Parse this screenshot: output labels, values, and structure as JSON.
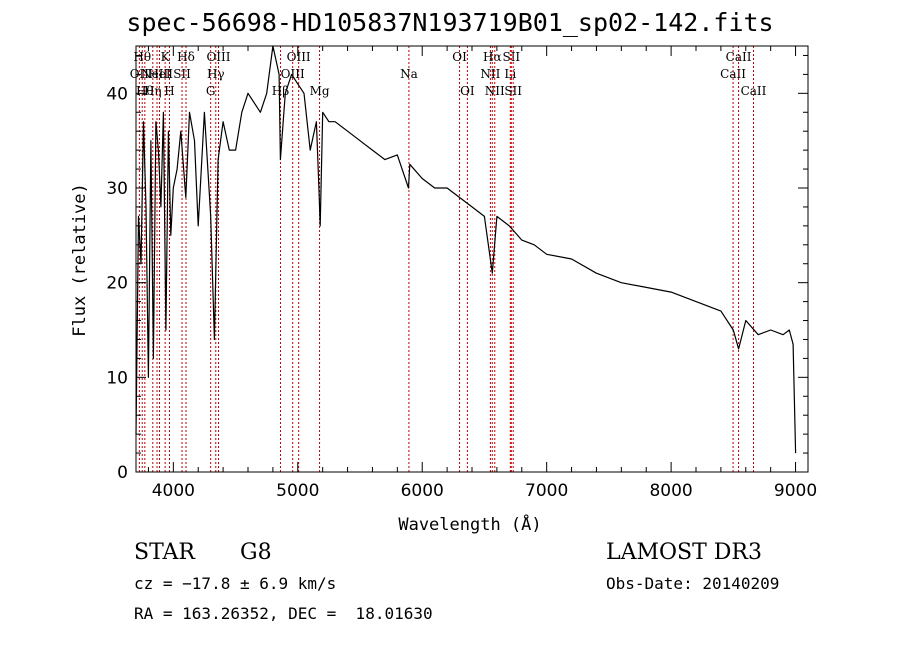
{
  "chart_data": {
    "type": "line",
    "title": "spec-56698-HD105837N193719B01_sp02-142.fits",
    "xlabel": "Wavelength (Å)",
    "ylabel": "Flux (relative)",
    "xlim": [
      3700,
      9100
    ],
    "ylim": [
      0,
      45
    ],
    "xticks": [
      4000,
      5000,
      6000,
      7000,
      8000,
      9000
    ],
    "yticks": [
      0,
      10,
      20,
      30,
      40
    ],
    "grid": false,
    "series": [
      {
        "name": "flux",
        "x": [
          3700,
          3720,
          3740,
          3760,
          3780,
          3800,
          3820,
          3840,
          3860,
          3880,
          3900,
          3920,
          3940,
          3960,
          3980,
          4000,
          4030,
          4060,
          4100,
          4130,
          4170,
          4200,
          4250,
          4300,
          4330,
          4360,
          4400,
          4450,
          4500,
          4550,
          4600,
          4650,
          4700,
          4750,
          4800,
          4850,
          4860,
          4900,
          4950,
          5000,
          5050,
          5100,
          5150,
          5170,
          5180,
          5200,
          5250,
          5300,
          5400,
          5500,
          5600,
          5700,
          5800,
          5890,
          5900,
          6000,
          6100,
          6200,
          6300,
          6400,
          6500,
          6563,
          6600,
          6700,
          6800,
          6900,
          7000,
          7200,
          7400,
          7600,
          7800,
          8000,
          8200,
          8400,
          8500,
          8542,
          8600,
          8700,
          8800,
          8900,
          8950,
          8980,
          9000
        ],
        "values": [
          4,
          27,
          22,
          37,
          28,
          10,
          35,
          12,
          37,
          34,
          28,
          38,
          15,
          36,
          25,
          30,
          32,
          36,
          29,
          38,
          35,
          26,
          38,
          27,
          14,
          33,
          37,
          34,
          34,
          38,
          40,
          39,
          38,
          40,
          45,
          42,
          33,
          40,
          42,
          41,
          40,
          34,
          37,
          30,
          26,
          38,
          37,
          37,
          36,
          35,
          34,
          33,
          33.5,
          30,
          32.5,
          31,
          30,
          30,
          29,
          28,
          27,
          21,
          27,
          26,
          24.5,
          24,
          23,
          22.5,
          21,
          20,
          19.5,
          19,
          18,
          17,
          15,
          13,
          16,
          14.5,
          15,
          14.5,
          15,
          13.5,
          2
        ]
      }
    ],
    "lines": [
      {
        "w": 3727,
        "label": "OII",
        "row": 2
      },
      {
        "w": 3750,
        "label": "Hθ",
        "row": 1
      },
      {
        "w": 3771,
        "label": "Hθ",
        "row": 3
      },
      {
        "w": 3835,
        "label": "Hη",
        "row": 3
      },
      {
        "w": 3869,
        "label": "NeIII",
        "row": 2
      },
      {
        "w": 3889,
        "label": "HeI",
        "row": 2
      },
      {
        "w": 3934,
        "label": "K",
        "row": 1
      },
      {
        "w": 3969,
        "label": "H",
        "row": 3
      },
      {
        "w": 4070,
        "label": "SII",
        "row": 2
      },
      {
        "w": 4102,
        "label": "Hδ",
        "row": 1
      },
      {
        "w": 4300,
        "label": "G",
        "row": 3
      },
      {
        "w": 4341,
        "label": "Hγ",
        "row": 2
      },
      {
        "w": 4363,
        "label": "OIII",
        "row": 1
      },
      {
        "w": 4861,
        "label": "Hβ",
        "row": 3
      },
      {
        "w": 4959,
        "label": "OIII",
        "row": 2
      },
      {
        "w": 5007,
        "label": "OIII",
        "row": 1
      },
      {
        "w": 5175,
        "label": "Mg",
        "row": 3
      },
      {
        "w": 5893,
        "label": "Na",
        "row": 2
      },
      {
        "w": 6300,
        "label": "OI",
        "row": 1
      },
      {
        "w": 6363,
        "label": "OI",
        "row": 3
      },
      {
        "w": 6548,
        "label": "NII",
        "row": 2
      },
      {
        "w": 6563,
        "label": "Hα",
        "row": 1
      },
      {
        "w": 6583,
        "label": "NII",
        "row": 3
      },
      {
        "w": 6708,
        "label": "Li",
        "row": 2
      },
      {
        "w": 6716,
        "label": "SII",
        "row": 1
      },
      {
        "w": 6731,
        "label": "SII",
        "row": 3
      },
      {
        "w": 8498,
        "label": "CaII",
        "row": 2
      },
      {
        "w": 8542,
        "label": "CaII",
        "row": 1
      },
      {
        "w": 8662,
        "label": "CaII",
        "row": 3
      }
    ]
  },
  "info": {
    "class": "STAR",
    "subclass": "G8",
    "survey": "LAMOST DR3",
    "cz": "cz = −17.8 ± 6.9 km/s",
    "obs_date": "Obs-Date: 20140209",
    "coords": "RA = 163.26352, DEC =  18.01630"
  }
}
